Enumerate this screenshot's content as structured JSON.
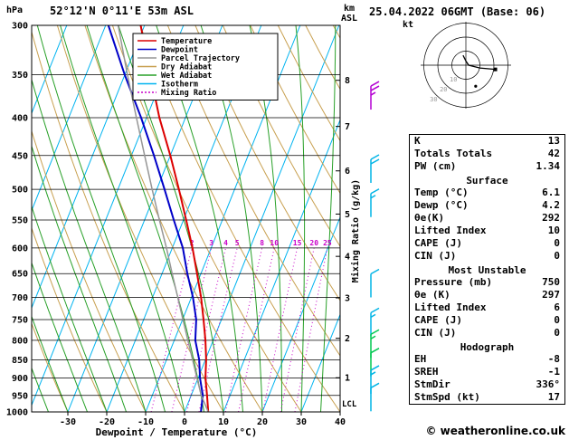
{
  "header": {
    "station": "52°12'N 0°11'E 53m ASL",
    "datetime": "25.04.2022 06GMT (Base: 06)",
    "copyright": "© weatheronline.co.uk"
  },
  "axes": {
    "pressure_label": "hPa",
    "pressure_ticks": [
      300,
      350,
      400,
      450,
      500,
      550,
      600,
      650,
      700,
      750,
      800,
      850,
      900,
      950,
      1000
    ],
    "x_label": "Dewpoint / Temperature (°C)",
    "x_ticks": [
      -30,
      -20,
      -10,
      0,
      10,
      20,
      30,
      40
    ],
    "km_label_line1": "km",
    "km_label_line2": "ASL",
    "km_ticks": [
      {
        "label": "1",
        "p": 899
      },
      {
        "label": "2",
        "p": 795
      },
      {
        "label": "3",
        "p": 701
      },
      {
        "label": "4",
        "p": 616
      },
      {
        "label": "5",
        "p": 540
      },
      {
        "label": "6",
        "p": 472
      },
      {
        "label": "7",
        "p": 411
      },
      {
        "label": "8",
        "p": 356
      }
    ],
    "lcl_label": "LCL",
    "lcl_pressure": 975,
    "mixing_label": "Mixing Ratio (g/kg)"
  },
  "legend": [
    {
      "label": "Temperature",
      "color": "#dc0000",
      "dash": ""
    },
    {
      "label": "Dewpoint",
      "color": "#0000c8",
      "dash": ""
    },
    {
      "label": "Parcel Trajectory",
      "color": "#969696",
      "dash": ""
    },
    {
      "label": "Dry Adiabat",
      "color": "#c8a050",
      "dash": ""
    },
    {
      "label": "Wet Adiabat",
      "color": "#28a028",
      "dash": ""
    },
    {
      "label": "Isotherm",
      "color": "#00b4f0",
      "dash": ""
    },
    {
      "label": "Mixing Ratio",
      "color": "#c800c8",
      "dash": "2,2"
    }
  ],
  "chart_data": {
    "type": "line",
    "title": "Skew-T log-P sounding 52°12'N 0°11'E 53m ASL",
    "pressure_hPa": [
      1000,
      950,
      900,
      850,
      800,
      750,
      700,
      650,
      600,
      550,
      500,
      450,
      400,
      350,
      300
    ],
    "series": [
      {
        "name": "Temperature",
        "data_name": "temperature-curve",
        "color": "#dc0000",
        "width": 2,
        "values_C": [
          6.1,
          4.1,
          1.9,
          0.2,
          -2.0,
          -4.6,
          -7.5,
          -11.0,
          -14.8,
          -19.3,
          -24.3,
          -30.0,
          -36.7,
          -43.4,
          -51.0
        ]
      },
      {
        "name": "Dewpoint",
        "data_name": "dewpoint-curve",
        "color": "#0000c8",
        "width": 2,
        "values_C": [
          4.2,
          3.0,
          0.5,
          -1.6,
          -4.6,
          -6.5,
          -9.6,
          -13.5,
          -17.3,
          -22.5,
          -28.0,
          -34.2,
          -41.4,
          -50.0,
          -59.3
        ]
      },
      {
        "name": "Parcel Trajectory",
        "data_name": "parcel-curve",
        "color": "#969696",
        "width": 1.5,
        "values_C": [
          6.1,
          2.6,
          -0.3,
          -3.3,
          -6.5,
          -9.9,
          -13.5,
          -17.4,
          -21.5,
          -26.2,
          -31.2,
          -36.6,
          -42.6,
          -49.3,
          -56.8
        ]
      }
    ],
    "x_range_C": [
      -38,
      40
    ],
    "pressure_range_hPa": [
      300,
      1000
    ],
    "isotherm_step_C": 10,
    "dry_adiabat_step_C": 10,
    "wet_adiabat_start_temps_C": [
      -40,
      -35,
      -30,
      -25,
      -20,
      -15,
      -10,
      -5,
      0,
      5,
      10,
      15,
      20,
      25,
      30,
      35,
      40,
      45
    ],
    "mixing_ratio_lines_gkg": [
      2,
      3,
      4,
      5,
      8,
      10,
      15,
      20,
      25
    ],
    "wind_barbs": [
      {
        "pressure": 390,
        "speed_kt": 25,
        "color": "#b400d2"
      },
      {
        "pressure": 490,
        "speed_kt": 20,
        "color": "#00b4e6"
      },
      {
        "pressure": 545,
        "speed_kt": 15,
        "color": "#00b4e6"
      },
      {
        "pressure": 700,
        "speed_kt": 10,
        "color": "#00b4e6"
      },
      {
        "pressure": 790,
        "speed_kt": 15,
        "color": "#00b4e6"
      },
      {
        "pressure": 845,
        "speed_kt": 15,
        "color": "#00c850"
      },
      {
        "pressure": 895,
        "speed_kt": 10,
        "color": "#00c850"
      },
      {
        "pressure": 945,
        "speed_kt": 15,
        "color": "#00b4e6"
      },
      {
        "pressure": 998,
        "speed_kt": 10,
        "color": "#00b4e6"
      }
    ],
    "colors": {
      "isotherm": "#00b4f0",
      "dry_adiabat": "#c8a050",
      "wet_adiabat": "#28a028",
      "mixing_ratio": "#c800c8"
    }
  },
  "hodograph": {
    "unit_label": "kt",
    "rings_kt": [
      10,
      20,
      30
    ],
    "trace_kt": [
      [
        -2,
        7
      ],
      [
        0,
        3
      ],
      [
        2,
        0
      ],
      [
        10,
        -2
      ],
      [
        21,
        -3
      ]
    ],
    "marker_kt": [
      21,
      -3
    ],
    "storm_marker_kt": [
      7,
      -15
    ]
  },
  "table": {
    "rows": [
      {
        "type": "kv",
        "label": "K",
        "value": "13"
      },
      {
        "type": "kv",
        "label": "Totals Totals",
        "value": "42"
      },
      {
        "type": "kv",
        "label": "PW (cm)",
        "value": "1.34"
      },
      {
        "type": "header",
        "label": "Surface"
      },
      {
        "type": "kv",
        "label": "Temp (°C)",
        "value": "6.1"
      },
      {
        "type": "kv",
        "label": "Dewp (°C)",
        "value": "4.2"
      },
      {
        "type": "kv",
        "label": "θe(K)",
        "value": "292"
      },
      {
        "type": "kv",
        "label": "Lifted Index",
        "value": "10"
      },
      {
        "type": "kv",
        "label": "CAPE (J)",
        "value": "0"
      },
      {
        "type": "kv",
        "label": "CIN (J)",
        "value": "0"
      },
      {
        "type": "header",
        "label": "Most Unstable"
      },
      {
        "type": "kv",
        "label": "Pressure (mb)",
        "value": "750"
      },
      {
        "type": "kv",
        "label": "θe (K)",
        "value": "297"
      },
      {
        "type": "kv",
        "label": "Lifted Index",
        "value": "6"
      },
      {
        "type": "kv",
        "label": "CAPE (J)",
        "value": "0"
      },
      {
        "type": "kv",
        "label": "CIN (J)",
        "value": "0"
      },
      {
        "type": "header",
        "label": "Hodograph"
      },
      {
        "type": "kv",
        "label": "EH",
        "value": "-8"
      },
      {
        "type": "kv",
        "label": "SREH",
        "value": "-1"
      },
      {
        "type": "kv",
        "label": "StmDir",
        "value": "336°"
      },
      {
        "type": "kv",
        "label": "StmSpd (kt)",
        "value": "17"
      }
    ]
  }
}
